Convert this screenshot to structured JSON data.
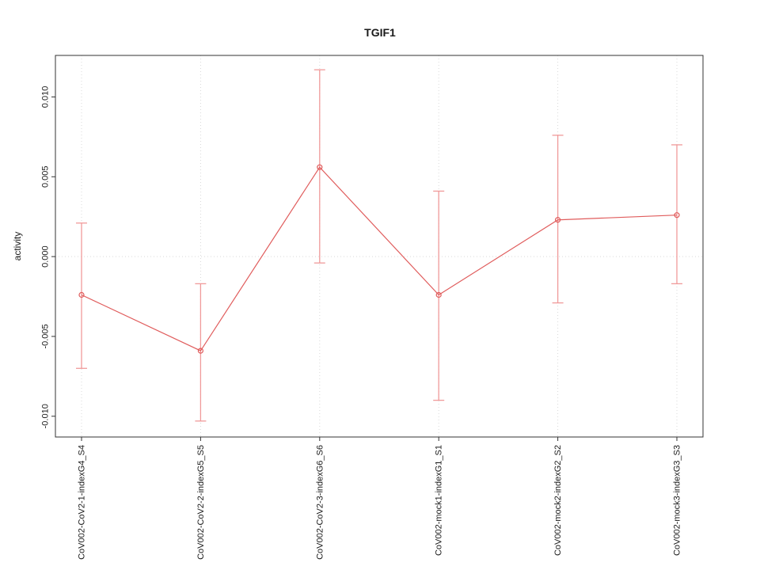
{
  "chart_data": {
    "type": "line",
    "title": "TGIF1",
    "xlabel": "",
    "ylabel": "activity",
    "categories": [
      "CoV002-CoV2-1-indexG4_S4",
      "CoV002-CoV2-2-indexG5_S5",
      "CoV002-CoV2-3-indexG6_S6",
      "CoV002-mock1-indexG1_S1",
      "CoV002-mock2-indexG2_S2",
      "CoV002-mock3-indexG3_S3"
    ],
    "series": [
      {
        "name": "activity",
        "values": [
          -0.0024,
          -0.0059,
          0.0056,
          -0.0024,
          0.0023,
          0.0026
        ],
        "upper": [
          0.0021,
          -0.0017,
          0.0117,
          0.0041,
          0.0076,
          0.007
        ],
        "lower": [
          -0.007,
          -0.0103,
          -0.0004,
          -0.009,
          -0.0029,
          -0.0017
        ]
      }
    ],
    "yticks": [
      -0.01,
      -0.005,
      0.0,
      0.005,
      0.01
    ],
    "ylim": [
      -0.0113,
      0.0126
    ],
    "grid": {
      "vertical_dotted_per_category": true,
      "horizontal_dotted_at_zero": true
    },
    "legend": "none",
    "marker": "open-circle",
    "colors": {
      "line": "#e05c5c",
      "point": "#e05c5c",
      "error_bar": "#f09a9a",
      "grid": "#d9d9d9",
      "axis": "#333333"
    }
  }
}
